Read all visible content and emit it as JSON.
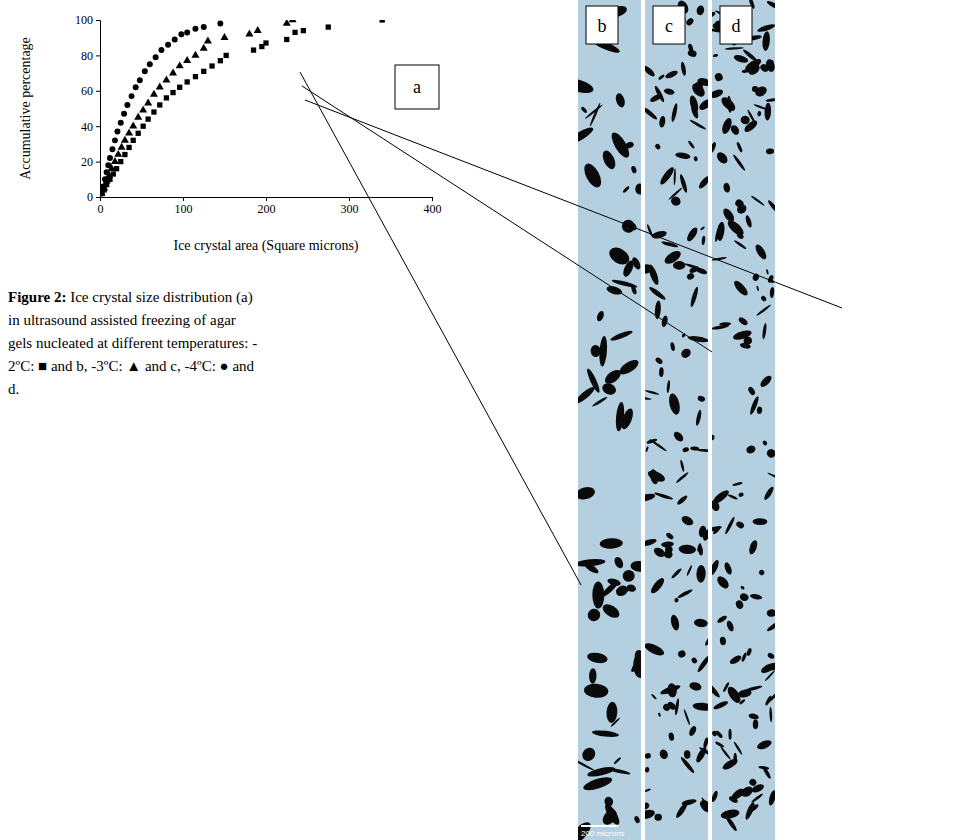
{
  "chart_data": {
    "type": "scatter",
    "panel_label": "a",
    "x_label": "Ice crystal area (Square microns)",
    "y_label": "Accumulative percentage",
    "xlim": [
      0,
      400
    ],
    "xticks": [
      0,
      100,
      200,
      300,
      400
    ],
    "ylim": [
      0,
      100
    ],
    "yticks": [
      0,
      20,
      40,
      60,
      80,
      100
    ],
    "grid": false,
    "series": [
      {
        "color": "#000000",
        "marker": "square",
        "x": [
          2,
          5,
          8,
          12,
          16,
          20,
          25,
          30,
          35,
          40,
          46,
          52,
          58,
          65,
          72,
          80,
          88,
          96,
          105,
          115,
          125,
          135,
          145,
          152,
          185,
          195,
          200,
          225,
          235,
          245,
          275,
          340
        ],
        "values": [
          2,
          4,
          7,
          10,
          13,
          16,
          20,
          24,
          28,
          32,
          36,
          40,
          44,
          48,
          52,
          56,
          59,
          62,
          65,
          68,
          71,
          74,
          77,
          80,
          83,
          85,
          87,
          89,
          93,
          94,
          96,
          100
        ]
      },
      {
        "color": "#000000",
        "marker": "triangle",
        "x": [
          2,
          5,
          8,
          11,
          14,
          18,
          22,
          26,
          30,
          35,
          40,
          46,
          52,
          58,
          65,
          72,
          80,
          88,
          96,
          105,
          115,
          125,
          130,
          150,
          180,
          190,
          225,
          232
        ],
        "values": [
          2,
          5,
          9,
          12,
          16,
          20,
          24,
          28,
          32,
          36,
          40,
          45,
          49,
          53,
          58,
          62,
          66,
          70,
          74,
          77,
          80,
          84,
          88,
          90,
          92,
          94,
          98,
          100
        ]
      },
      {
        "color": "#000000",
        "marker": "circle",
        "x": [
          2,
          4,
          6,
          8,
          10,
          12,
          15,
          18,
          21,
          25,
          29,
          33,
          38,
          43,
          48,
          54,
          60,
          67,
          74,
          82,
          90,
          98,
          105,
          115,
          125,
          145
        ],
        "values": [
          2,
          6,
          10,
          14,
          18,
          22,
          27,
          32,
          37,
          42,
          47,
          52,
          57,
          62,
          66,
          71,
          75,
          79,
          83,
          86,
          89,
          92,
          93,
          95,
          96,
          98
        ]
      }
    ]
  },
  "caption_label": "Figure 2:",
  "caption_lines": [
    "Ice crystal size distribution (a)",
    "in ultrasound assisted freezing of agar",
    "gels nucleated at different temperatures: -",
    "2ºC: ■ and b, -3ºC: ▲ and c, -4ºC: ● and",
    "d."
  ],
  "micrographs": [
    {
      "label": "b",
      "scale_text": "200 microns"
    },
    {
      "label": "c"
    },
    {
      "label": "d"
    }
  ]
}
